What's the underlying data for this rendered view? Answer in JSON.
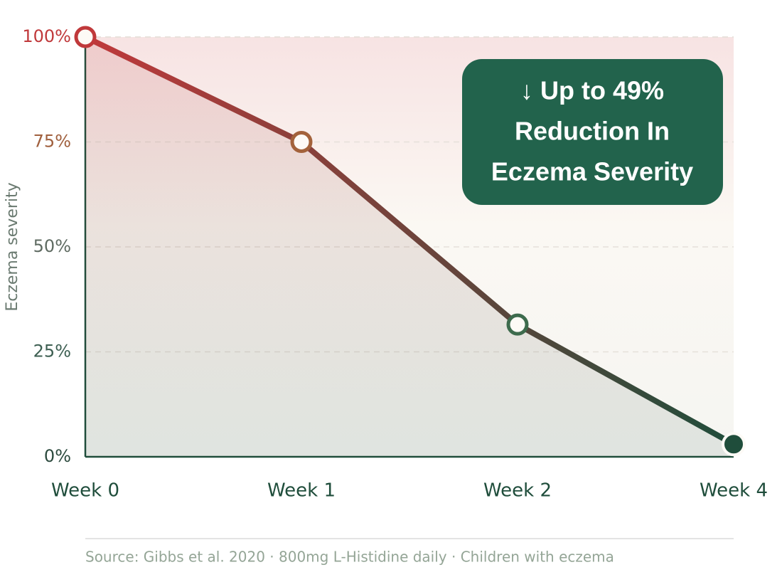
{
  "chart_data": {
    "type": "line",
    "y_label": "Eczema severity",
    "categories": [
      "Week 0",
      "Week 1",
      "Week 2",
      "Week 4"
    ],
    "values": [
      100,
      75,
      31.5,
      3
    ],
    "point_colors": [
      "#c0393b",
      "#a3623b",
      "#3d6b4d",
      "#1f4d3b"
    ],
    "line_colors": [
      "#c0393b",
      "#1f4d3b"
    ],
    "ylim": [
      0,
      100
    ],
    "yticks": [
      {
        "value": 0,
        "label": "0%",
        "color": "#2c4a3e"
      },
      {
        "value": 25,
        "label": "25%",
        "color": "#3d5f52"
      },
      {
        "value": 50,
        "label": "50%",
        "color": "#5f6b62"
      },
      {
        "value": 75,
        "label": "75%",
        "color": "#a0603e"
      },
      {
        "value": 100,
        "label": "100%",
        "color": "#c0393b"
      }
    ],
    "grid": true,
    "annotation": [
      "↓ Up to 49%",
      "Reduction In",
      "Eczema Severity"
    ],
    "annotation_color": "#22634c",
    "source": "Source: Gibbs et al. 2020 · 800mg L-Histidine daily · Children with eczema"
  }
}
